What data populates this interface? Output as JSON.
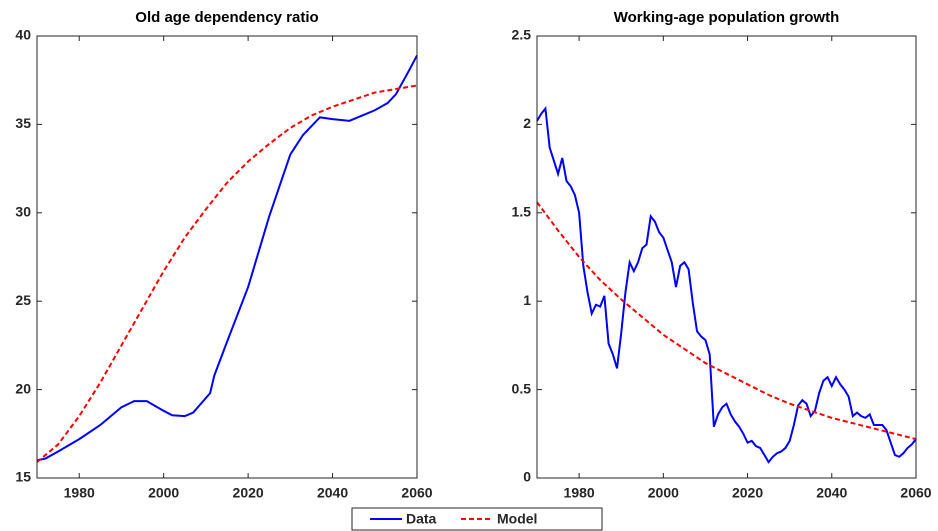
{
  "chart_data": [
    {
      "type": "line",
      "title": "Old age dependency ratio",
      "xlim": [
        1970,
        2060
      ],
      "xticks": [
        1980,
        2000,
        2020,
        2040,
        2060
      ],
      "ylim": [
        15,
        40
      ],
      "yticks": [
        15,
        20,
        25,
        30,
        35,
        40
      ],
      "series": [
        {
          "name": "Data",
          "color": "#0000ff",
          "line_style": "solid",
          "x": [
            1970,
            1972,
            1975,
            1980,
            1985,
            1990,
            1993,
            1996,
            2000,
            2002,
            2005,
            2007,
            2011,
            2012,
            2015,
            2020,
            2025,
            2030,
            2033,
            2035,
            2037,
            2040,
            2044,
            2046,
            2050,
            2053,
            2055,
            2058,
            2060
          ],
          "values": [
            16.0,
            16.1,
            16.5,
            17.2,
            18.0,
            19.0,
            19.35,
            19.35,
            18.8,
            18.55,
            18.5,
            18.7,
            19.8,
            20.8,
            22.7,
            25.8,
            29.8,
            33.3,
            34.4,
            34.9,
            35.4,
            35.3,
            35.2,
            35.4,
            35.8,
            36.2,
            36.7,
            38.0,
            38.9
          ]
        },
        {
          "name": "Model",
          "color": "#ff0000",
          "line_style": "dashed",
          "x": [
            1970,
            1975,
            1980,
            1985,
            1990,
            1995,
            2000,
            2005,
            2010,
            2015,
            2020,
            2025,
            2030,
            2035,
            2040,
            2045,
            2050,
            2055,
            2060
          ],
          "values": [
            15.9,
            16.9,
            18.5,
            20.4,
            22.5,
            24.6,
            26.7,
            28.6,
            30.2,
            31.7,
            32.9,
            33.9,
            34.8,
            35.5,
            36.0,
            36.4,
            36.8,
            37.0,
            37.2
          ]
        }
      ]
    },
    {
      "type": "line",
      "title": "Working-age population growth",
      "xlim": [
        1970,
        2060
      ],
      "xticks": [
        1980,
        2000,
        2020,
        2040,
        2060
      ],
      "ylim": [
        0,
        2.5
      ],
      "yticks": [
        0,
        0.5,
        1,
        1.5,
        2,
        2.5
      ],
      "series": [
        {
          "name": "Data",
          "color": "#0000ff",
          "line_style": "solid",
          "x": [
            1970,
            1971,
            1972,
            1973,
            1975,
            1976,
            1977,
            1978,
            1979,
            1980,
            1981,
            1982,
            1983,
            1984,
            1985,
            1986,
            1987,
            1988,
            1989,
            1990,
            1991,
            1992,
            1993,
            1994,
            1995,
            1996,
            1997,
            1998,
            1999,
            2000,
            2001,
            2002,
            2003,
            2004,
            2005,
            2006,
            2007,
            2008,
            2009,
            2010,
            2011,
            2012,
            2013,
            2014,
            2015,
            2016,
            2017,
            2018,
            2019,
            2020,
            2021,
            2022,
            2023,
            2024,
            2025,
            2026,
            2027,
            2028,
            2029,
            2030,
            2031,
            2032,
            2033,
            2034,
            2035,
            2036,
            2037,
            2038,
            2039,
            2040,
            2041,
            2042,
            2043,
            2044,
            2045,
            2046,
            2047,
            2048,
            2049,
            2050,
            2051,
            2052,
            2053,
            2054,
            2055,
            2056,
            2057,
            2058,
            2059,
            2060
          ],
          "values": [
            2.02,
            2.06,
            2.09,
            1.87,
            1.72,
            1.81,
            1.68,
            1.65,
            1.6,
            1.5,
            1.2,
            1.05,
            0.93,
            0.98,
            0.97,
            1.03,
            0.76,
            0.7,
            0.62,
            0.82,
            1.05,
            1.22,
            1.17,
            1.22,
            1.3,
            1.32,
            1.48,
            1.45,
            1.39,
            1.36,
            1.29,
            1.22,
            1.08,
            1.2,
            1.22,
            1.18,
            0.99,
            0.83,
            0.8,
            0.78,
            0.7,
            0.29,
            0.36,
            0.4,
            0.42,
            0.36,
            0.32,
            0.29,
            0.25,
            0.2,
            0.21,
            0.18,
            0.17,
            0.13,
            0.09,
            0.12,
            0.14,
            0.15,
            0.17,
            0.21,
            0.3,
            0.41,
            0.44,
            0.42,
            0.35,
            0.38,
            0.48,
            0.55,
            0.57,
            0.52,
            0.57,
            0.53,
            0.5,
            0.46,
            0.35,
            0.37,
            0.35,
            0.34,
            0.36,
            0.3,
            0.3,
            0.3,
            0.27,
            0.2,
            0.13,
            0.12,
            0.14,
            0.17,
            0.19,
            0.22
          ]
        },
        {
          "name": "Model",
          "color": "#ff0000",
          "line_style": "dashed",
          "x": [
            1970,
            1975,
            1980,
            1985,
            1990,
            1995,
            2000,
            2005,
            2010,
            2015,
            2020,
            2025,
            2030,
            2035,
            2040,
            2045,
            2050,
            2055,
            2060
          ],
          "values": [
            1.56,
            1.4,
            1.25,
            1.12,
            1.01,
            0.91,
            0.81,
            0.73,
            0.65,
            0.59,
            0.53,
            0.47,
            0.42,
            0.38,
            0.34,
            0.31,
            0.28,
            0.25,
            0.22
          ]
        }
      ]
    }
  ]
}
